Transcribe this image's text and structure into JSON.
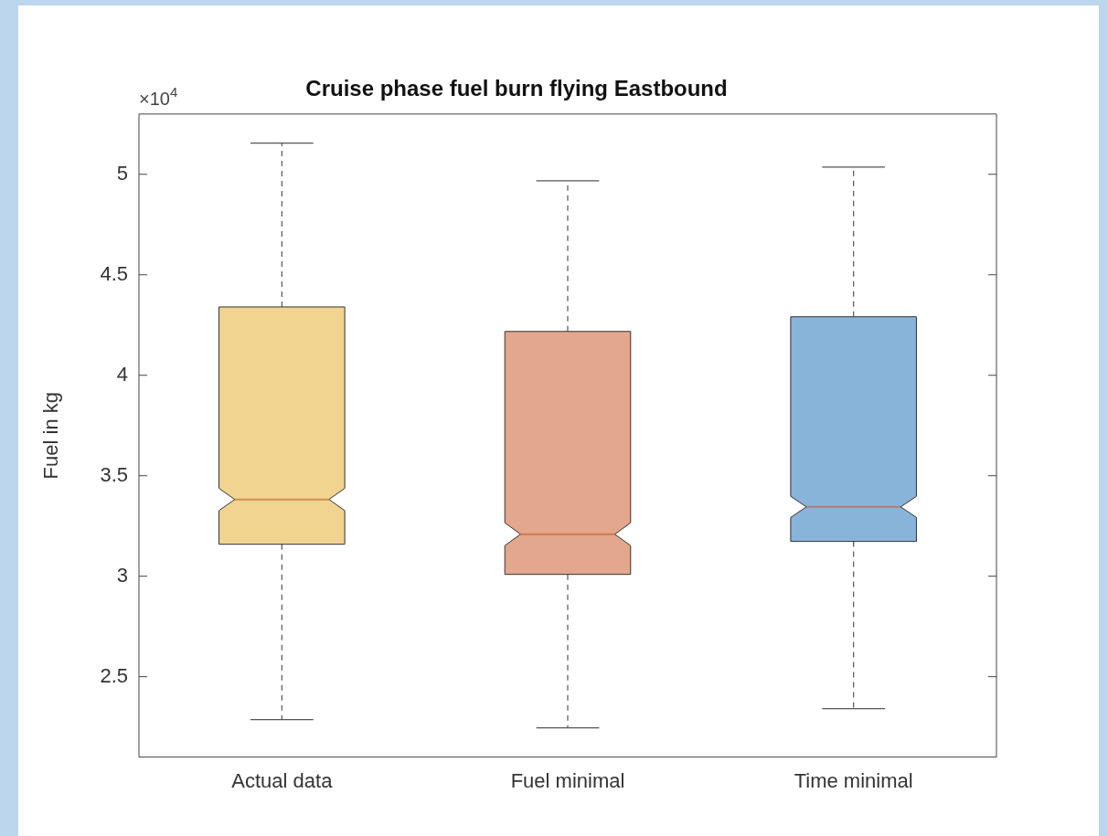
{
  "chart_data": {
    "type": "box",
    "title": "Cruise phase fuel burn flying Eastbound",
    "ylabel": "Fuel in kg",
    "categories": [
      "Actual data",
      "Fuel minimal",
      "Time minimal"
    ],
    "boxes": [
      {
        "low": 2.286,
        "q1": 3.159,
        "median": 3.382,
        "q3": 4.34,
        "high": 5.155
      },
      {
        "low": 2.245,
        "q1": 3.009,
        "median": 3.209,
        "q3": 4.218,
        "high": 4.968
      },
      {
        "low": 2.341,
        "q1": 3.173,
        "median": 3.345,
        "q3": 4.291,
        "high": 5.036
      }
    ],
    "colors": [
      "#f0d490",
      "#e2a78c",
      "#88b4d9"
    ],
    "ylim": [
      2.1,
      5.3
    ],
    "yticks": [
      2.5,
      3,
      3.5,
      4,
      4.5,
      5
    ],
    "annotations": [
      "×10$^{4}$"
    ],
    "grid": false,
    "legend": false
  }
}
